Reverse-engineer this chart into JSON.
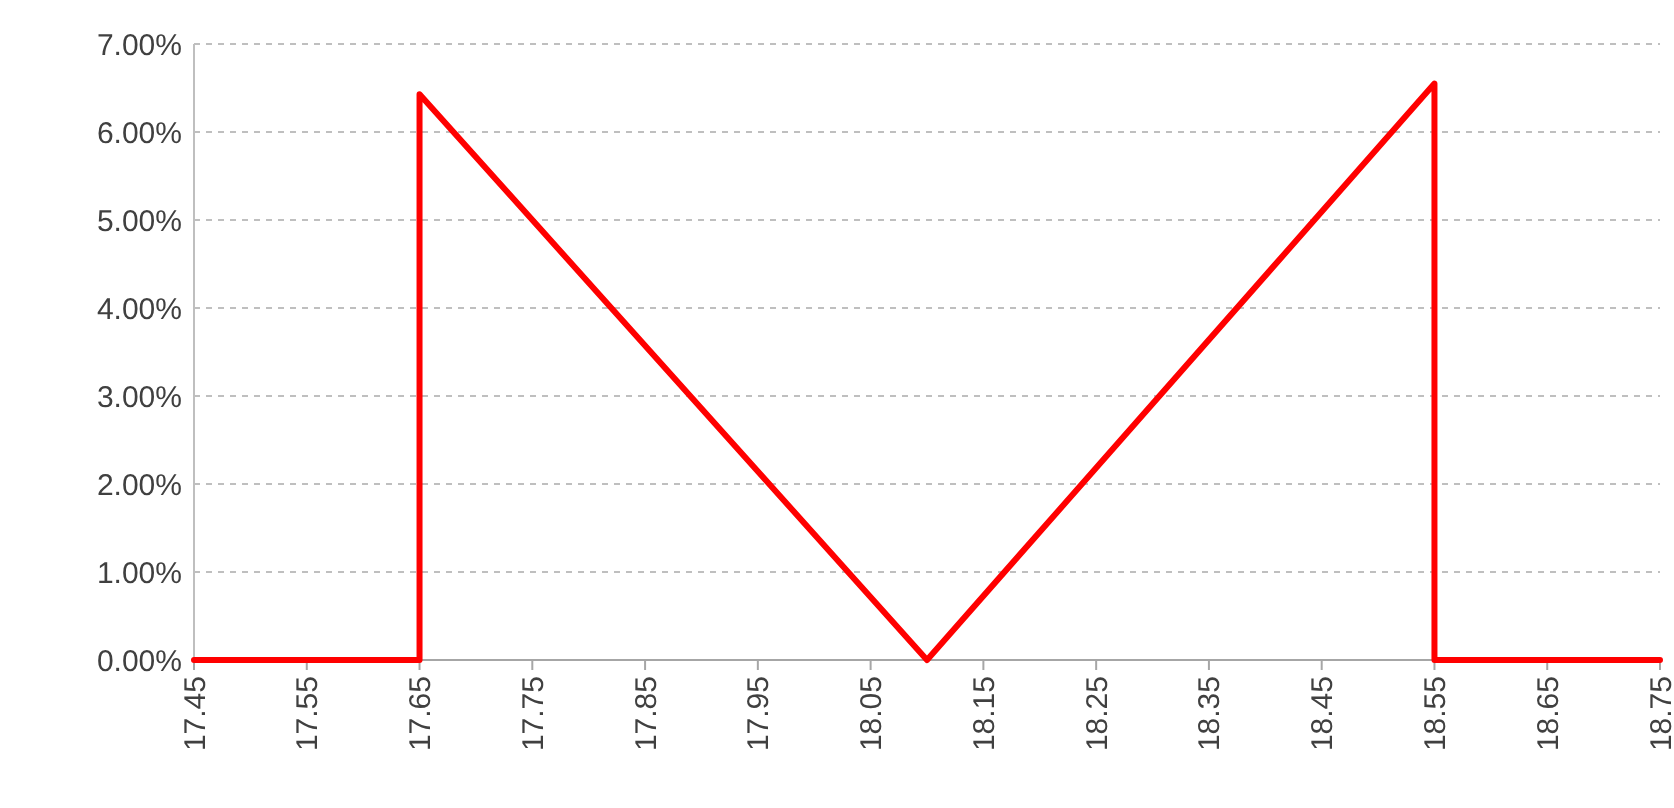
{
  "chart_data": {
    "type": "line",
    "x": [
      17.45,
      17.65,
      17.65,
      18.1,
      18.55,
      18.55,
      18.75
    ],
    "series": [
      {
        "color": "#ff0000",
        "values": [
          0,
          0,
          6.43,
          0,
          6.55,
          0,
          0
        ]
      }
    ],
    "xlim": [
      17.45,
      18.75
    ],
    "xticks": [
      17.45,
      17.55,
      17.65,
      17.75,
      17.85,
      17.95,
      18.05,
      18.15,
      18.25,
      18.35,
      18.45,
      18.55,
      18.65,
      18.75
    ],
    "ylim": [
      0,
      7
    ],
    "yticks": [
      {
        "value": 0,
        "label": "0.00%"
      },
      {
        "value": 1,
        "label": "1.00%"
      },
      {
        "value": 2,
        "label": "2.00%"
      },
      {
        "value": 3,
        "label": "3.00%"
      },
      {
        "value": 4,
        "label": "4.00%"
      },
      {
        "value": 5,
        "label": "5.00%"
      },
      {
        "value": 6,
        "label": "6.00%"
      },
      {
        "value": 7,
        "label": "7.00%"
      }
    ],
    "grid": "y",
    "marker": "none",
    "line_style": "solid"
  }
}
